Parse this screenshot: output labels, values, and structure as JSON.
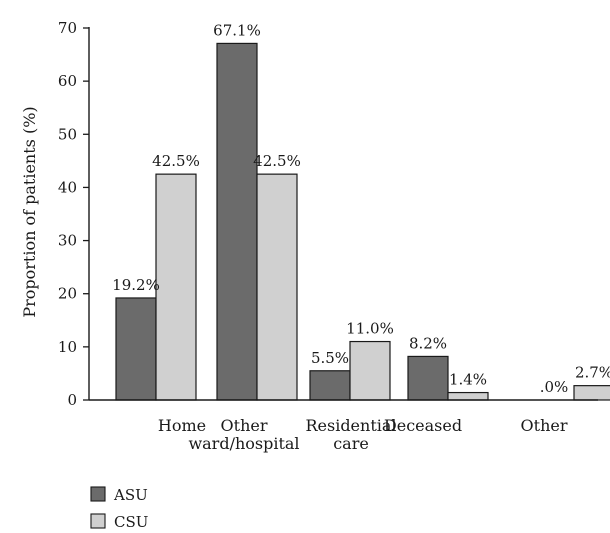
{
  "chart_data": {
    "type": "bar",
    "title": "",
    "xlabel": "",
    "ylabel": "Proportion of patients (%)",
    "ylim": [
      0,
      70
    ],
    "yticks": [
      0,
      10,
      20,
      30,
      40,
      50,
      60,
      70
    ],
    "grid": false,
    "legend_position": "bottom-left",
    "categories": [
      [
        "Home"
      ],
      [
        "Other",
        "ward/hospital"
      ],
      [
        "Residential",
        "care"
      ],
      [
        "Deceased"
      ],
      [
        "Other"
      ]
    ],
    "series": [
      {
        "name": "ASU",
        "color": "#6b6b6b",
        "values": [
          19.2,
          67.1,
          5.5,
          8.2,
          0.0
        ],
        "labels": [
          "19.2%",
          "67.1%",
          "5.5%",
          "8.2%",
          ".0%"
        ]
      },
      {
        "name": "CSU",
        "color": "#d0d0d0",
        "values": [
          42.5,
          42.5,
          11.0,
          1.4,
          2.7
        ],
        "labels": [
          "42.5%",
          "42.5%",
          "11.0%",
          "1.4%",
          "2.7%"
        ]
      }
    ]
  }
}
